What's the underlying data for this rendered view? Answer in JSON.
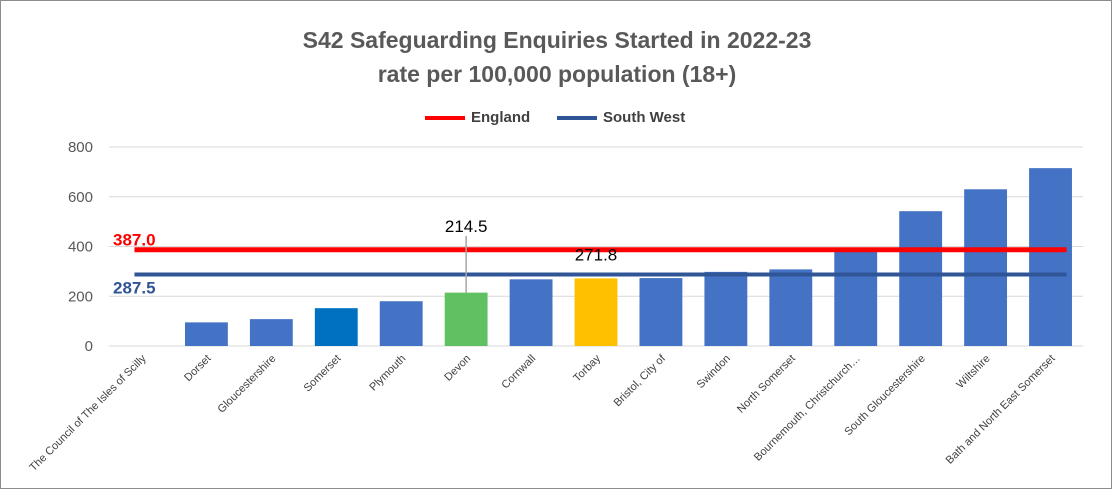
{
  "chart_data": {
    "type": "bar",
    "title": "S42 Safeguarding Enquiries Started in 2022-23",
    "subtitle": "rate per 100,000 population (18+)",
    "categories": [
      "The Council of The Isles of Scilly",
      "Dorset",
      "Gloucestershire",
      "Somerset",
      "Plymouth",
      "Devon",
      "Cornwall",
      "Torbay",
      "Bristol, City of",
      "Swindon",
      "North Somerset",
      "Bournemouth, Christchurch…",
      "South Gloucestershire",
      "Wiltshire",
      "Bath and North East Somerset"
    ],
    "values": [
      0,
      95,
      108,
      152,
      180,
      214.5,
      268,
      271.8,
      273,
      298,
      308,
      387,
      542,
      630,
      715
    ],
    "bar_colors": [
      "#4472C4",
      "#4472C4",
      "#4472C4",
      "#0070C0",
      "#4472C4",
      "#5FC15F",
      "#4472C4",
      "#FFC000",
      "#4472C4",
      "#4472C4",
      "#4472C4",
      "#4472C4",
      "#4472C4",
      "#4472C4",
      "#4472C4"
    ],
    "data_labels": [
      {
        "category": "Devon",
        "text": "214.5"
      },
      {
        "category": "Torbay",
        "text": "271.8"
      }
    ],
    "reference_lines": [
      {
        "name": "England",
        "value": 387.0,
        "label": "387.0",
        "color": "#FF0000"
      },
      {
        "name": "South West",
        "value": 287.5,
        "label": "287.5",
        "color": "#2F5597"
      }
    ],
    "yticks": [
      "0",
      "200",
      "400",
      "600",
      "800"
    ],
    "ylim": [
      0,
      800
    ],
    "grid": true,
    "legend_position": "top"
  }
}
